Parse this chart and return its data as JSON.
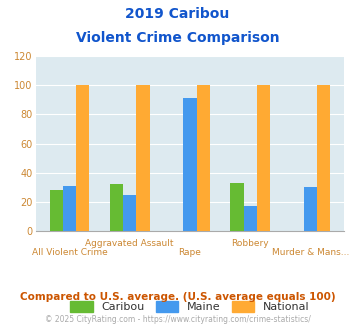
{
  "title_line1": "2019 Caribou",
  "title_line2": "Violent Crime Comparison",
  "categories": [
    "All Violent Crime",
    "Aggravated Assault",
    "Rape",
    "Robbery",
    "Murder & Mans..."
  ],
  "caribou": [
    28,
    32,
    0,
    33,
    0
  ],
  "maine": [
    31,
    25,
    91,
    17,
    30
  ],
  "national": [
    100,
    100,
    100,
    100,
    100
  ],
  "colors": {
    "caribou": "#66bb33",
    "maine": "#4499ee",
    "national": "#ffaa33"
  },
  "ylim": [
    0,
    120
  ],
  "yticks": [
    0,
    20,
    40,
    60,
    80,
    100,
    120
  ],
  "background_color": "#ddeaf0",
  "title_color": "#1155cc",
  "ytick_color": "#cc8833",
  "axis_label_color": "#cc8833",
  "legend_label_color": "#333333",
  "footnote1": "Compared to U.S. average. (U.S. average equals 100)",
  "footnote2": "© 2025 CityRating.com - https://www.cityrating.com/crime-statistics/",
  "footnote1_color": "#cc5500",
  "footnote2_color": "#aaaaaa"
}
